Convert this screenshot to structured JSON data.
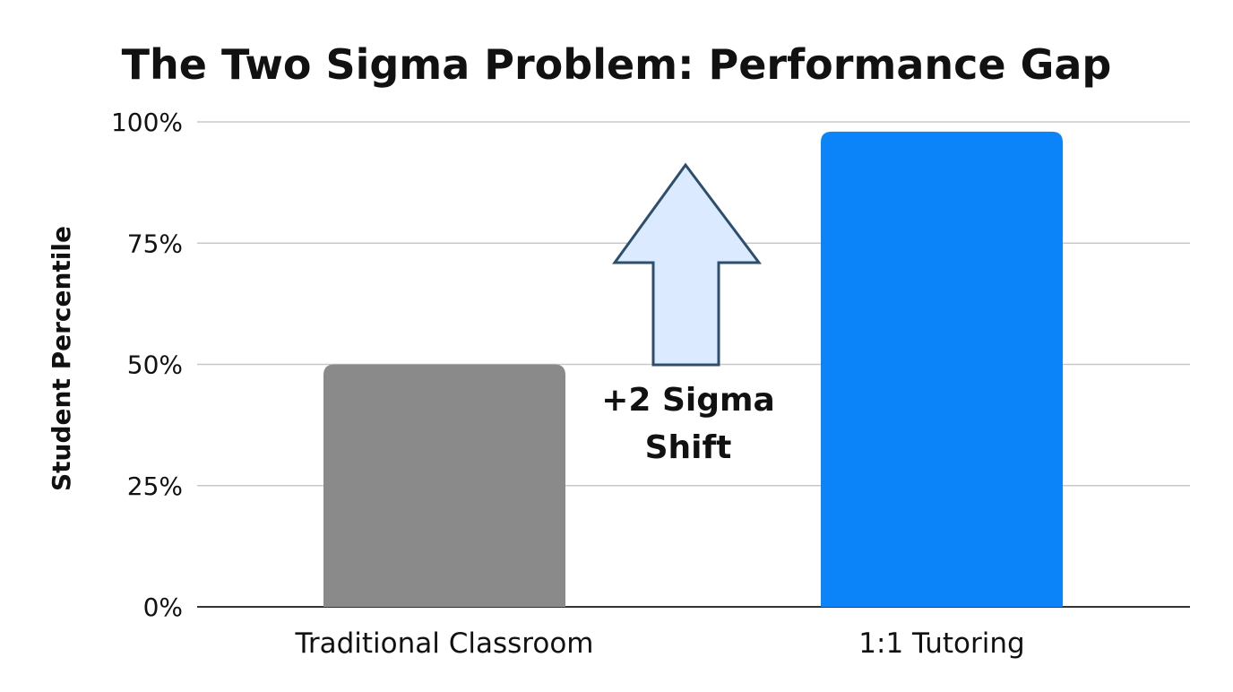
{
  "chart_data": {
    "type": "bar",
    "title": "The Two Sigma Problem: Performance Gap",
    "xlabel": "",
    "ylabel": "Student Percentile",
    "ylim": [
      0,
      100
    ],
    "yticks": [
      "0%",
      "25%",
      "50%",
      "75%",
      "100%"
    ],
    "yticks_values": [
      0,
      25,
      50,
      75,
      100
    ],
    "categories": [
      "Traditional Classroom",
      "1:1 Tutoring"
    ],
    "values": [
      50,
      98
    ],
    "bar_colors": [
      "#8a8a8a",
      "#0b84fa"
    ],
    "grid": true,
    "legend": "none",
    "annotation": {
      "lines": [
        "+2 Sigma",
        "Shift"
      ],
      "arrow_fill": "#dbeafe",
      "arrow_stroke": "#2d4e6c",
      "direction": "up"
    }
  }
}
